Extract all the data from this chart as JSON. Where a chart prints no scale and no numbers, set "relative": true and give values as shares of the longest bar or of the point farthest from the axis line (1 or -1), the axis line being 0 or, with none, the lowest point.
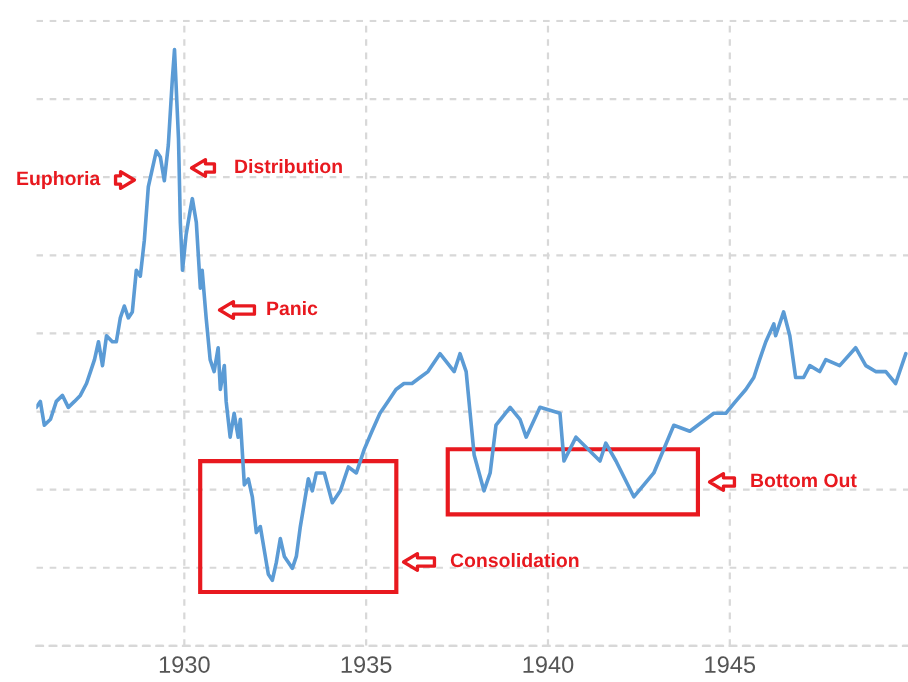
{
  "chart_data": {
    "type": "line",
    "relative": true,
    "tick_labels": "x",
    "grid": true,
    "marker": "none",
    "line_style": "solid",
    "xlim": [
      1925.93,
      1949.9
    ],
    "xticks": [
      1930,
      1935,
      1940,
      1945
    ],
    "x": [
      1925.93,
      1926.04,
      1926.15,
      1926.32,
      1926.48,
      1926.65,
      1926.81,
      1926.98,
      1927.14,
      1927.31,
      1927.42,
      1927.53,
      1927.64,
      1927.75,
      1927.86,
      1928.02,
      1928.13,
      1928.24,
      1928.35,
      1928.46,
      1928.57,
      1928.68,
      1928.79,
      1928.9,
      1929.01,
      1929.12,
      1929.23,
      1929.34,
      1929.45,
      1929.56,
      1929.67,
      1929.73,
      1929.84,
      1929.89,
      1929.95,
      1930.05,
      1930.16,
      1930.22,
      1930.33,
      1930.44,
      1930.49,
      1930.6,
      1930.71,
      1930.82,
      1930.93,
      1930.99,
      1931.1,
      1931.15,
      1931.26,
      1931.37,
      1931.48,
      1931.54,
      1931.65,
      1931.76,
      1931.87,
      1931.98,
      1932.09,
      1932.2,
      1932.31,
      1932.42,
      1932.53,
      1932.64,
      1932.75,
      1932.97,
      1933.08,
      1933.19,
      1933.3,
      1933.41,
      1933.52,
      1933.63,
      1933.85,
      1934.07,
      1934.29,
      1934.51,
      1934.73,
      1934.95,
      1935.16,
      1935.38,
      1935.6,
      1935.82,
      1936.04,
      1936.26,
      1936.48,
      1936.7,
      1937.03,
      1937.42,
      1937.58,
      1937.75,
      1937.97,
      1938.24,
      1938.41,
      1938.57,
      1938.96,
      1939.23,
      1939.4,
      1939.78,
      1940.33,
      1940.44,
      1940.77,
      1941.43,
      1941.59,
      1941.87,
      1942.36,
      1942.91,
      1943.46,
      1943.9,
      1944.56,
      1944.89,
      1945.16,
      1945.44,
      1945.66,
      1945.82,
      1945.99,
      1946.21,
      1946.26,
      1946.48,
      1946.65,
      1946.81,
      1947.03,
      1947.2,
      1947.47,
      1947.64,
      1948.02,
      1948.46,
      1948.74,
      1949.01,
      1949.29,
      1949.56,
      1949.84
    ],
    "series": [
      {
        "color": "#5b9bd5",
        "values": [
          0.4,
          0.41,
          0.37,
          0.38,
          0.41,
          0.42,
          0.4,
          0.41,
          0.42,
          0.44,
          0.46,
          0.48,
          0.51,
          0.47,
          0.52,
          0.51,
          0.51,
          0.55,
          0.57,
          0.55,
          0.56,
          0.63,
          0.62,
          0.68,
          0.77,
          0.8,
          0.83,
          0.82,
          0.78,
          0.84,
          0.95,
          1.0,
          0.85,
          0.71,
          0.63,
          0.69,
          0.73,
          0.75,
          0.71,
          0.6,
          0.63,
          0.55,
          0.48,
          0.46,
          0.5,
          0.43,
          0.47,
          0.41,
          0.35,
          0.39,
          0.35,
          0.38,
          0.27,
          0.28,
          0.25,
          0.19,
          0.2,
          0.16,
          0.12,
          0.11,
          0.14,
          0.18,
          0.15,
          0.13,
          0.15,
          0.2,
          0.24,
          0.28,
          0.26,
          0.29,
          0.29,
          0.24,
          0.26,
          0.3,
          0.29,
          0.33,
          0.36,
          0.39,
          0.41,
          0.43,
          0.44,
          0.44,
          0.45,
          0.46,
          0.49,
          0.46,
          0.49,
          0.46,
          0.32,
          0.26,
          0.29,
          0.37,
          0.4,
          0.38,
          0.35,
          0.4,
          0.39,
          0.31,
          0.35,
          0.31,
          0.34,
          0.31,
          0.25,
          0.29,
          0.37,
          0.36,
          0.39,
          0.39,
          0.41,
          0.43,
          0.45,
          0.48,
          0.51,
          0.54,
          0.52,
          0.56,
          0.52,
          0.45,
          0.45,
          0.47,
          0.46,
          0.48,
          0.47,
          0.5,
          0.47,
          0.46,
          0.46,
          0.44,
          0.49
        ]
      }
    ],
    "annotations": [
      "Euphoria",
      "Distribution",
      "Panic",
      "Consolidation",
      "Bottom Out"
    ]
  }
}
